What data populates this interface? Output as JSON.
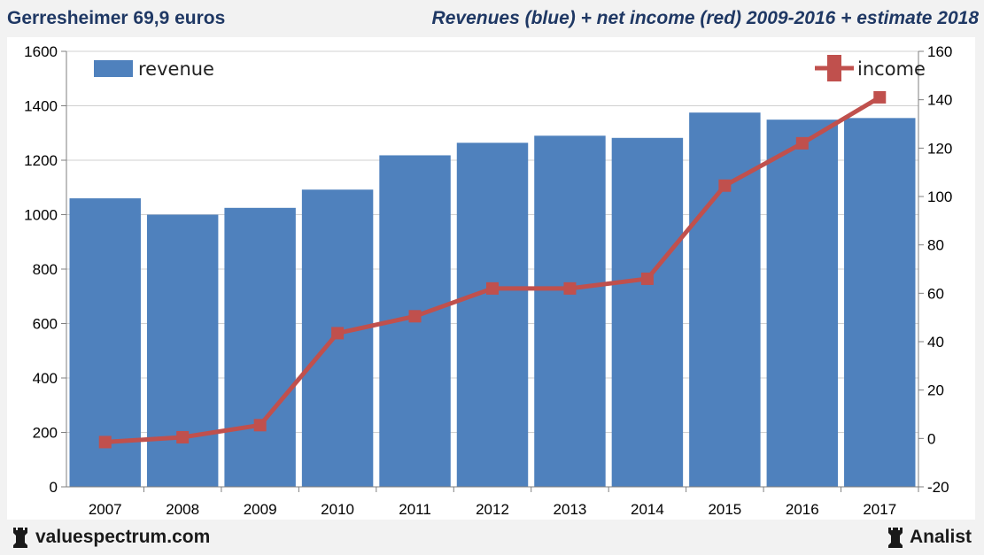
{
  "header": {
    "left_title": "Gerresheimer 69,9 euros",
    "right_title": "Revenues (blue) + net income (red) 2009-2016 + estimate 2018"
  },
  "footer": {
    "left_brand": "valuespectrum.com",
    "right_brand": "Analist",
    "left_icon": "rook-icon",
    "right_icon": "rook-icon"
  },
  "chart_data": {
    "type": "bar",
    "categories": [
      "2007",
      "2008",
      "2009",
      "2010",
      "2011",
      "2012",
      "2013",
      "2014",
      "2015",
      "2016",
      "2017"
    ],
    "series": [
      {
        "name": "revenue",
        "type": "bar",
        "axis": "left",
        "color": "#4f81bd",
        "values": [
          1060,
          1000,
          1025,
          1092,
          1218,
          1264,
          1290,
          1282,
          1375,
          1349,
          1355
        ]
      },
      {
        "name": "income",
        "type": "line",
        "axis": "right",
        "color": "#c0504d",
        "values": [
          -1.5,
          0.5,
          5.5,
          43.5,
          50.5,
          62,
          62,
          66,
          104.5,
          122,
          141
        ]
      }
    ],
    "y_left": {
      "min": 0,
      "max": 1600,
      "ticks": [
        0,
        200,
        400,
        600,
        800,
        1000,
        1200,
        1400,
        1600
      ]
    },
    "y_right": {
      "min": -20,
      "max": 160,
      "ticks": [
        -20,
        0,
        20,
        40,
        60,
        80,
        100,
        120,
        140,
        160
      ]
    },
    "grid": true,
    "legend": {
      "revenue": "top-left",
      "income": "top-right"
    }
  }
}
